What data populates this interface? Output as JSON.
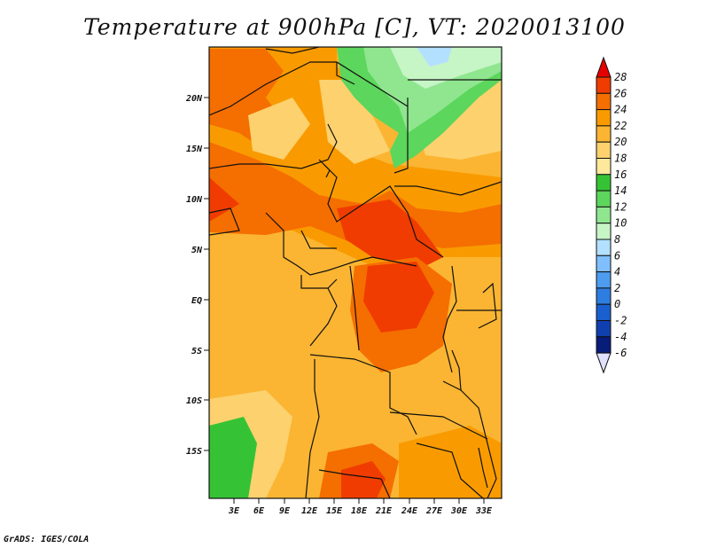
{
  "title": "Temperature at 900hPa [C], VT: 2020013100",
  "credit": "GrADS: IGES/COLA",
  "map": {
    "lat_ticks": [
      "20N",
      "15N",
      "10N",
      "5N",
      "EQ",
      "5S",
      "10S",
      "15S"
    ],
    "lon_ticks": [
      "3E",
      "6E",
      "9E",
      "12E",
      "15E",
      "18E",
      "21E",
      "24E",
      "27E",
      "30E",
      "33E"
    ]
  },
  "colorbar": {
    "labels": [
      "28",
      "26",
      "24",
      "22",
      "20",
      "18",
      "16",
      "14",
      "12",
      "10",
      "8",
      "6",
      "4",
      "2",
      "0",
      "-2",
      "-4",
      "-6"
    ],
    "colors": [
      "#e60000",
      "#f03c00",
      "#f56e00",
      "#f99b00",
      "#fbb532",
      "#fcd16e",
      "#fde89b",
      "#35c335",
      "#5cd65c",
      "#8fe68f",
      "#c6f5c6",
      "#b3e0ff",
      "#7fbfff",
      "#4d9cf0",
      "#2e7de0",
      "#1a5fd0",
      "#1040b0",
      "#081c7a",
      "#e0e0ff"
    ],
    "top_arrow_color": "#e60000",
    "bottom_arrow_color": "#e0e0ff"
  }
}
